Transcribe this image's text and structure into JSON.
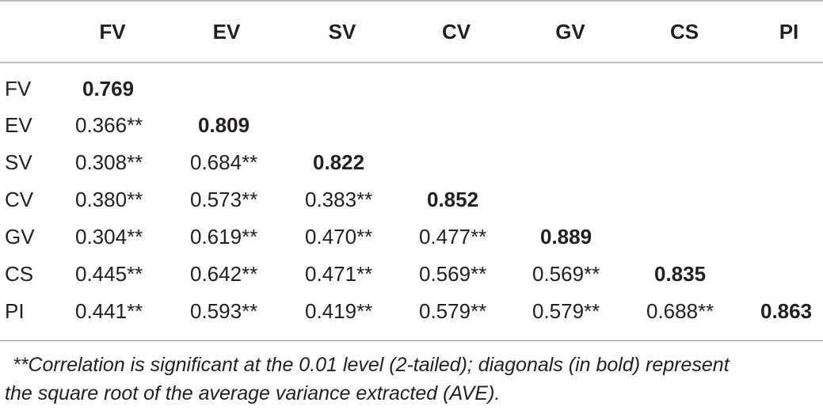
{
  "table": {
    "columns": [
      "FV",
      "EV",
      "SV",
      "CV",
      "GV",
      "CS",
      "PI"
    ],
    "rows": [
      {
        "label": "FV",
        "cells": [
          "0.769"
        ],
        "diag": 0
      },
      {
        "label": "EV",
        "cells": [
          "0.366**",
          "0.809"
        ],
        "diag": 1
      },
      {
        "label": "SV",
        "cells": [
          "0.308**",
          "0.684**",
          "0.822"
        ],
        "diag": 2
      },
      {
        "label": "CV",
        "cells": [
          "0.380**",
          "0.573**",
          "0.383**",
          "0.852"
        ],
        "diag": 3
      },
      {
        "label": "GV",
        "cells": [
          "0.304**",
          "0.619**",
          "0.470**",
          "0.477**",
          "0.889"
        ],
        "diag": 4
      },
      {
        "label": "CS",
        "cells": [
          "0.445**",
          "0.642**",
          "0.471**",
          "0.569**",
          "0.569**",
          "0.835"
        ],
        "diag": 5
      },
      {
        "label": "PI",
        "cells": [
          "0.441**",
          "0.593**",
          "0.419**",
          "0.579**",
          "0.579**",
          "0.688**",
          "0.863"
        ],
        "diag": 6
      }
    ]
  },
  "footnote": {
    "line1": "**Correlation is significant at the 0.01 level (2-tailed); diagonals (in bold) represent",
    "line2": "the square root of the average variance extracted (AVE)."
  }
}
